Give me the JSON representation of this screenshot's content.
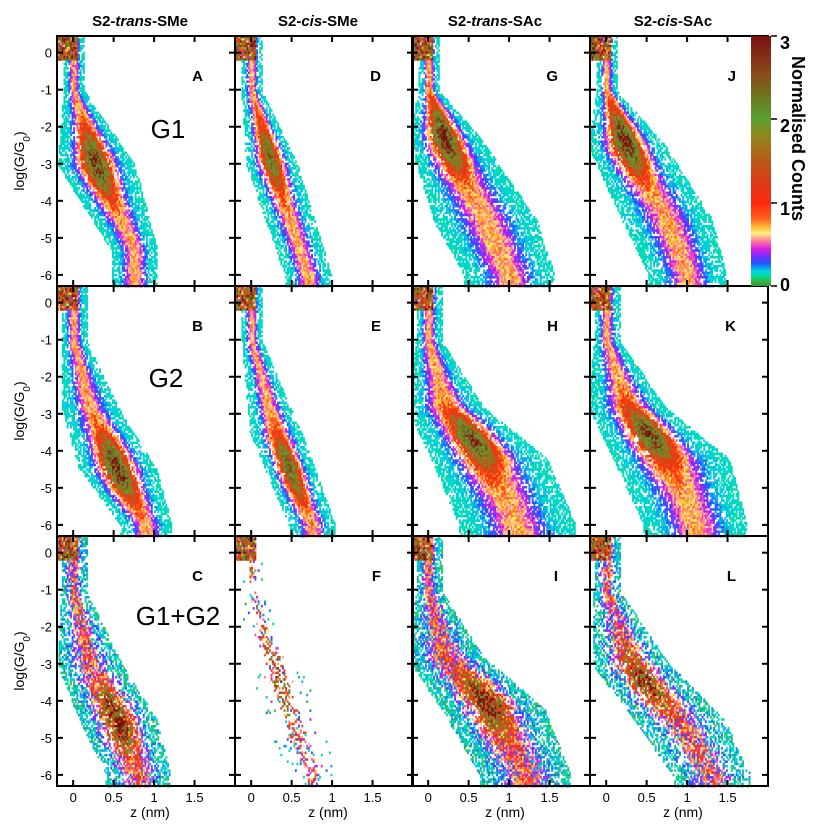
{
  "chart_data": {
    "type": "heatmap",
    "column_titles": [
      {
        "pre": "S2-",
        "ital": "trans",
        "post": "-SMe"
      },
      {
        "pre": "S2-",
        "ital": "cis",
        "post": "-SMe"
      },
      {
        "pre": "S2-",
        "ital": "trans",
        "post": "-SAc"
      },
      {
        "pre": "S2-",
        "ital": "cis",
        "post": "-SAc"
      }
    ],
    "row_labels": [
      "G1",
      "G2",
      "G1+G2"
    ],
    "xlabel": "z (nm)",
    "ylabel": {
      "main": "log(G/G",
      "sub": "0",
      "close": ")"
    },
    "xlim": [
      -0.2,
      2.0
    ],
    "ylim": [
      -6.3,
      0.45
    ],
    "xticks": [
      0,
      0.5,
      1,
      1.5
    ],
    "xtick_labels": [
      "0",
      "0.5",
      "1",
      "1.5"
    ],
    "yticks": [
      0,
      -1,
      -2,
      -3,
      -4,
      -5,
      -6
    ],
    "ytick_labels": [
      "0",
      "-1",
      "-2",
      "-3",
      "-4",
      "-5",
      "-6"
    ],
    "colorbar": {
      "label": "Normalised Counts",
      "ticks": [
        0,
        1,
        2,
        3
      ],
      "tick_labels": [
        "0",
        "1",
        "2",
        "3"
      ],
      "range": [
        0,
        3
      ]
    },
    "panels": [
      {
        "id": "A",
        "row": 0,
        "col": 0,
        "density": 0.95,
        "noise": "smooth",
        "segments": [
          [
            0.0,
            -1.0,
            0.08
          ],
          [
            0.28,
            -3.0,
            0.3
          ],
          [
            0.75,
            -5.3,
            0.18
          ]
        ],
        "peak": [
          0.25,
          -3.0
        ],
        "peak_value": 2.0
      },
      {
        "id": "B",
        "row": 1,
        "col": 0,
        "density": 0.95,
        "noise": "smooth",
        "segments": [
          [
            0.0,
            -1.0,
            0.1
          ],
          [
            0.2,
            -2.8,
            0.22
          ],
          [
            0.55,
            -4.5,
            0.3
          ],
          [
            0.9,
            -6.0,
            0.2
          ]
        ],
        "peak": [
          0.5,
          -4.5
        ],
        "peak_value": 2.2
      },
      {
        "id": "C",
        "row": 2,
        "col": 0,
        "density": 0.85,
        "noise": "speckle",
        "segments": [
          [
            0.0,
            -1.0,
            0.1
          ],
          [
            0.2,
            -3.0,
            0.25
          ],
          [
            0.55,
            -4.5,
            0.3
          ],
          [
            0.8,
            -6.0,
            0.25
          ]
        ],
        "peak": [
          0.5,
          -4.5
        ],
        "peak_value": 1.9
      },
      {
        "id": "D",
        "row": 0,
        "col": 1,
        "density": 0.9,
        "noise": "smooth",
        "segments": [
          [
            0.0,
            -1.0,
            0.08
          ],
          [
            0.25,
            -3.0,
            0.2
          ],
          [
            0.7,
            -6.0,
            0.18
          ]
        ],
        "peak": [
          0.2,
          -2.8
        ],
        "peak_value": 1.5
      },
      {
        "id": "E",
        "row": 1,
        "col": 1,
        "density": 0.9,
        "noise": "smooth",
        "segments": [
          [
            0.0,
            -1.0,
            0.08
          ],
          [
            0.3,
            -3.5,
            0.2
          ],
          [
            0.75,
            -6.0,
            0.18
          ]
        ],
        "peak": [
          0.4,
          -4.5
        ],
        "peak_value": 1.8
      },
      {
        "id": "F",
        "row": 2,
        "col": 1,
        "density": 0.28,
        "noise": "traces",
        "segments": [
          [
            0.0,
            -1.0,
            0.08
          ],
          [
            0.3,
            -3.2,
            0.22
          ],
          [
            0.75,
            -6.0,
            0.2
          ]
        ],
        "peak": [
          0.35,
          -3.5
        ],
        "peak_value": 1.2
      },
      {
        "id": "G",
        "row": 0,
        "col": 2,
        "density": 0.95,
        "noise": "smooth",
        "segments": [
          [
            0.0,
            -1.0,
            0.08
          ],
          [
            0.2,
            -2.3,
            0.28
          ],
          [
            0.7,
            -4.5,
            0.4
          ],
          [
            1.0,
            -6.0,
            0.35
          ]
        ],
        "peak": [
          0.18,
          -2.3
        ],
        "peak_value": 2.2
      },
      {
        "id": "H",
        "row": 1,
        "col": 2,
        "density": 0.95,
        "noise": "smooth",
        "segments": [
          [
            0.0,
            -1.0,
            0.1
          ],
          [
            0.2,
            -2.8,
            0.3
          ],
          [
            0.75,
            -4.2,
            0.45
          ],
          [
            1.1,
            -6.0,
            0.45
          ]
        ],
        "peak": [
          0.55,
          -3.7
        ],
        "peak_value": 1.9
      },
      {
        "id": "I",
        "row": 2,
        "col": 2,
        "density": 0.9,
        "noise": "speckle",
        "segments": [
          [
            0.0,
            -1.0,
            0.1
          ],
          [
            0.2,
            -2.8,
            0.3
          ],
          [
            0.8,
            -4.2,
            0.4
          ],
          [
            1.2,
            -6.0,
            0.35
          ]
        ],
        "peak": [
          0.7,
          -4.0
        ],
        "peak_value": 2.1
      },
      {
        "id": "J",
        "row": 0,
        "col": 3,
        "density": 0.95,
        "noise": "smooth",
        "segments": [
          [
            0.0,
            -1.0,
            0.08
          ],
          [
            0.25,
            -2.5,
            0.3
          ],
          [
            0.75,
            -4.5,
            0.35
          ],
          [
            1.0,
            -6.0,
            0.3
          ]
        ],
        "peak": [
          0.2,
          -2.4
        ],
        "peak_value": 2.2
      },
      {
        "id": "K",
        "row": 1,
        "col": 3,
        "density": 0.95,
        "noise": "smooth",
        "segments": [
          [
            0.0,
            -1.0,
            0.1
          ],
          [
            0.25,
            -2.8,
            0.3
          ],
          [
            0.8,
            -4.2,
            0.45
          ],
          [
            1.1,
            -6.0,
            0.4
          ]
        ],
        "peak": [
          0.5,
          -3.6
        ],
        "peak_value": 2.0
      },
      {
        "id": "L",
        "row": 2,
        "col": 3,
        "density": 0.8,
        "noise": "speckle",
        "segments": [
          [
            0.0,
            -1.0,
            0.1
          ],
          [
            0.3,
            -3.0,
            0.3
          ],
          [
            0.9,
            -4.5,
            0.35
          ],
          [
            1.3,
            -6.0,
            0.3
          ]
        ],
        "peak": [
          0.45,
          -3.5
        ],
        "peak_value": 1.8
      }
    ]
  }
}
